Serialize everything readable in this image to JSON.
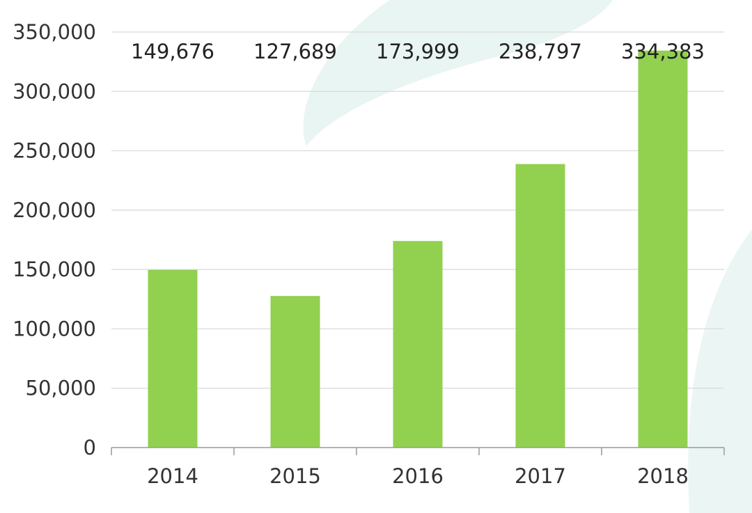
{
  "colors": {
    "bar": "#92d050",
    "grid": "#d9d9d9",
    "axis": "#999999",
    "background_swirl": "#e6f4f1"
  },
  "chart_data": {
    "type": "bar",
    "categories": [
      "2014",
      "2015",
      "2016",
      "2017",
      "2018"
    ],
    "values": [
      149676,
      127689,
      173999,
      238797,
      334383
    ],
    "data_labels": [
      "149,676",
      "127,689",
      "173,999",
      "238,797",
      "334,383"
    ],
    "ylim": [
      0,
      350000
    ],
    "yticks": [
      0,
      50000,
      100000,
      150000,
      200000,
      250000,
      300000,
      350000
    ],
    "ytick_labels": [
      "0",
      "50,000",
      "100,000",
      "150,000",
      "200,000",
      "250,000",
      "300,000",
      "350,000"
    ],
    "grid": true,
    "legend": "none"
  }
}
